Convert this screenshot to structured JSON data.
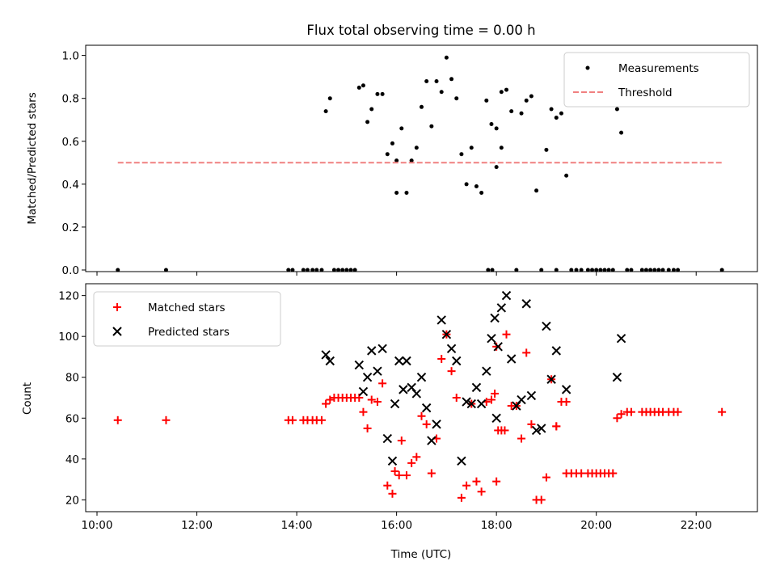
{
  "figure": {
    "title": "Flux total observing time = 0.00 h"
  },
  "chart_data": [
    {
      "type": "scatter",
      "ylabel": "Matched/Predicted stars",
      "xlabel": "",
      "xlim": [
        "10:00",
        "23:00"
      ],
      "ylim": [
        0,
        1.04
      ],
      "yticks": [
        0.0,
        0.2,
        0.4,
        0.6,
        0.8,
        1.0
      ],
      "ytick_labels": [
        "0.0",
        "0.2",
        "0.4",
        "0.6",
        "0.8",
        "1.0"
      ],
      "xticks": [
        "10:00",
        "12:00",
        "14:00",
        "16:00",
        "18:00",
        "20:00",
        "22:00"
      ],
      "show_xtick_labels": false,
      "legend_position": "upper right",
      "series": [
        {
          "name": "Measurements",
          "kind": "points",
          "color": "#000000",
          "points": [
            [
              "10:25",
              0.0
            ],
            [
              "11:23",
              0.0
            ],
            [
              "13:50",
              0.0
            ],
            [
              "13:55",
              0.0
            ],
            [
              "14:08",
              0.0
            ],
            [
              "14:13",
              0.0
            ],
            [
              "14:19",
              0.0
            ],
            [
              "14:24",
              0.0
            ],
            [
              "14:30",
              0.0
            ],
            [
              "14:35",
              0.74
            ],
            [
              "14:40",
              0.8
            ],
            [
              "14:45",
              0.0
            ],
            [
              "14:50",
              0.0
            ],
            [
              "14:55",
              0.0
            ],
            [
              "15:00",
              0.0
            ],
            [
              "15:05",
              0.0
            ],
            [
              "15:10",
              0.0
            ],
            [
              "15:15",
              0.85
            ],
            [
              "15:20",
              0.86
            ],
            [
              "15:25",
              0.69
            ],
            [
              "15:30",
              0.75
            ],
            [
              "15:37",
              0.82
            ],
            [
              "15:43",
              0.82
            ],
            [
              "15:49",
              0.54
            ],
            [
              "15:55",
              0.59
            ],
            [
              "15:60",
              0.51
            ],
            [
              "16:00",
              0.36
            ],
            [
              "16:06",
              0.66
            ],
            [
              "16:12",
              0.36
            ],
            [
              "16:18",
              0.51
            ],
            [
              "16:24",
              0.57
            ],
            [
              "16:30",
              0.76
            ],
            [
              "16:36",
              0.88
            ],
            [
              "16:42",
              0.67
            ],
            [
              "16:48",
              0.88
            ],
            [
              "16:54",
              0.83
            ],
            [
              "17:00",
              0.99
            ],
            [
              "17:06",
              0.89
            ],
            [
              "17:12",
              0.8
            ],
            [
              "17:18",
              0.54
            ],
            [
              "17:24",
              0.4
            ],
            [
              "17:30",
              0.57
            ],
            [
              "17:36",
              0.39
            ],
            [
              "17:42",
              0.36
            ],
            [
              "17:48",
              0.79
            ],
            [
              "17:54",
              0.68
            ],
            [
              "18:00",
              0.66
            ],
            [
              "18:06",
              0.57
            ],
            [
              "17:50",
              0.0
            ],
            [
              "17:55",
              0.0
            ],
            [
              "18:00",
              0.48
            ],
            [
              "18:06",
              0.83
            ],
            [
              "18:12",
              0.84
            ],
            [
              "18:18",
              0.74
            ],
            [
              "18:24",
              0.0
            ],
            [
              "18:30",
              0.73
            ],
            [
              "18:36",
              0.79
            ],
            [
              "18:42",
              0.81
            ],
            [
              "18:48",
              0.37
            ],
            [
              "18:54",
              0.0
            ],
            [
              "19:00",
              0.56
            ],
            [
              "19:06",
              0.75
            ],
            [
              "19:12",
              0.71
            ],
            [
              "19:18",
              0.73
            ],
            [
              "19:12",
              0.0
            ],
            [
              "19:24",
              0.44
            ],
            [
              "19:30",
              0.0
            ],
            [
              "19:36",
              0.0
            ],
            [
              "19:42",
              0.0
            ],
            [
              "19:50",
              0.0
            ],
            [
              "19:55",
              0.0
            ],
            [
              "20:00",
              0.0
            ],
            [
              "20:05",
              0.0
            ],
            [
              "20:10",
              0.0
            ],
            [
              "20:15",
              0.0
            ],
            [
              "20:20",
              0.0
            ],
            [
              "20:25",
              0.75
            ],
            [
              "20:30",
              0.64
            ],
            [
              "20:37",
              0.0
            ],
            [
              "20:42",
              0.0
            ],
            [
              "20:55",
              0.0
            ],
            [
              "21:00",
              0.0
            ],
            [
              "21:05",
              0.0
            ],
            [
              "21:10",
              0.0
            ],
            [
              "21:15",
              0.0
            ],
            [
              "21:20",
              0.0
            ],
            [
              "21:27",
              0.0
            ],
            [
              "21:33",
              0.0
            ],
            [
              "21:38",
              0.0
            ],
            [
              "22:31",
              0.0
            ]
          ]
        },
        {
          "name": "Threshold",
          "kind": "dashed-line",
          "color": "#f08080",
          "points": [
            [
              "10:25",
              0.5
            ],
            [
              "22:31",
              0.5
            ]
          ]
        }
      ]
    },
    {
      "type": "scatter",
      "ylabel": "Count",
      "xlabel": "Time (UTC)",
      "xlim": [
        "10:00",
        "23:00"
      ],
      "ylim": [
        15,
        125
      ],
      "yticks": [
        20,
        40,
        60,
        80,
        100,
        120
      ],
      "ytick_labels": [
        "20",
        "40",
        "60",
        "80",
        "100",
        "120"
      ],
      "xticks": [
        "10:00",
        "12:00",
        "14:00",
        "16:00",
        "18:00",
        "20:00",
        "22:00"
      ],
      "xtick_labels": [
        "10:00",
        "12:00",
        "14:00",
        "16:00",
        "18:00",
        "20:00",
        "22:00"
      ],
      "legend_position": "upper left",
      "series": [
        {
          "name": "Matched stars",
          "marker": "plus",
          "color": "#ff0000",
          "points": [
            [
              "10:25",
              59
            ],
            [
              "11:23",
              59
            ],
            [
              "13:50",
              59
            ],
            [
              "13:55",
              59
            ],
            [
              "14:08",
              59
            ],
            [
              "14:13",
              59
            ],
            [
              "14:19",
              59
            ],
            [
              "14:24",
              59
            ],
            [
              "14:30",
              59
            ],
            [
              "14:35",
              67
            ],
            [
              "14:40",
              69
            ],
            [
              "14:45",
              70
            ],
            [
              "14:50",
              70
            ],
            [
              "14:55",
              70
            ],
            [
              "15:00",
              70
            ],
            [
              "15:05",
              70
            ],
            [
              "15:10",
              70
            ],
            [
              "15:15",
              70
            ],
            [
              "15:20",
              63
            ],
            [
              "15:25",
              55
            ],
            [
              "15:30",
              69
            ],
            [
              "15:37",
              68
            ],
            [
              "15:43",
              77
            ],
            [
              "15:49",
              27
            ],
            [
              "15:55",
              23
            ],
            [
              "15:58",
              34
            ],
            [
              "16:03",
              32
            ],
            [
              "16:06",
              49
            ],
            [
              "16:12",
              32
            ],
            [
              "16:18",
              38
            ],
            [
              "16:24",
              41
            ],
            [
              "16:30",
              61
            ],
            [
              "16:36",
              57
            ],
            [
              "16:42",
              33
            ],
            [
              "16:48",
              50
            ],
            [
              "16:54",
              89
            ],
            [
              "17:00",
              101
            ],
            [
              "17:06",
              83
            ],
            [
              "17:12",
              70
            ],
            [
              "17:18",
              21
            ],
            [
              "17:24",
              27
            ],
            [
              "17:30",
              67
            ],
            [
              "17:36",
              29
            ],
            [
              "17:42",
              24
            ],
            [
              "17:48",
              68
            ],
            [
              "17:54",
              69
            ],
            [
              "17:58",
              72
            ],
            [
              "18:02",
              54
            ],
            [
              "18:06",
              54
            ],
            [
              "18:10",
              54
            ],
            [
              "17:60",
              29
            ],
            [
              "18:00",
              95
            ],
            [
              "18:12",
              101
            ],
            [
              "18:18",
              66
            ],
            [
              "18:24",
              66
            ],
            [
              "18:30",
              50
            ],
            [
              "18:36",
              92
            ],
            [
              "18:42",
              57
            ],
            [
              "18:48",
              20
            ],
            [
              "18:54",
              20
            ],
            [
              "19:00",
              31
            ],
            [
              "19:06",
              79
            ],
            [
              "19:12",
              56
            ],
            [
              "19:18",
              68
            ],
            [
              "19:24",
              68
            ],
            [
              "19:12",
              56
            ],
            [
              "19:24",
              33
            ],
            [
              "19:30",
              33
            ],
            [
              "19:36",
              33
            ],
            [
              "19:42",
              33
            ],
            [
              "19:50",
              33
            ],
            [
              "19:55",
              33
            ],
            [
              "20:00",
              33
            ],
            [
              "20:05",
              33
            ],
            [
              "20:10",
              33
            ],
            [
              "20:15",
              33
            ],
            [
              "20:20",
              33
            ],
            [
              "20:25",
              60
            ],
            [
              "20:30",
              62
            ],
            [
              "20:37",
              63
            ],
            [
              "20:42",
              63
            ],
            [
              "20:55",
              63
            ],
            [
              "21:00",
              63
            ],
            [
              "21:05",
              63
            ],
            [
              "21:10",
              63
            ],
            [
              "21:15",
              63
            ],
            [
              "21:20",
              63
            ],
            [
              "21:27",
              63
            ],
            [
              "21:33",
              63
            ],
            [
              "21:38",
              63
            ],
            [
              "22:31",
              63
            ]
          ]
        },
        {
          "name": "Predicted stars",
          "marker": "x",
          "color": "#000000",
          "points": [
            [
              "14:35",
              91
            ],
            [
              "14:40",
              88
            ],
            [
              "15:15",
              86
            ],
            [
              "15:20",
              73
            ],
            [
              "15:25",
              80
            ],
            [
              "15:30",
              93
            ],
            [
              "15:37",
              83
            ],
            [
              "15:43",
              94
            ],
            [
              "15:49",
              50
            ],
            [
              "15:55",
              39
            ],
            [
              "15:58",
              67
            ],
            [
              "16:03",
              88
            ],
            [
              "16:08",
              74
            ],
            [
              "16:12",
              88
            ],
            [
              "16:18",
              75
            ],
            [
              "16:24",
              72
            ],
            [
              "16:30",
              80
            ],
            [
              "16:36",
              65
            ],
            [
              "16:42",
              49
            ],
            [
              "16:48",
              57
            ],
            [
              "16:54",
              108
            ],
            [
              "17:00",
              101
            ],
            [
              "17:06",
              94
            ],
            [
              "17:12",
              88
            ],
            [
              "17:18",
              39
            ],
            [
              "17:24",
              68
            ],
            [
              "17:30",
              67
            ],
            [
              "17:36",
              75
            ],
            [
              "17:42",
              67
            ],
            [
              "17:48",
              83
            ],
            [
              "17:54",
              99
            ],
            [
              "17:58",
              109
            ],
            [
              "18:02",
              95
            ],
            [
              "18:00",
              60
            ],
            [
              "18:06",
              114
            ],
            [
              "18:12",
              120
            ],
            [
              "18:18",
              89
            ],
            [
              "18:24",
              66
            ],
            [
              "18:30",
              69
            ],
            [
              "18:36",
              116
            ],
            [
              "18:42",
              71
            ],
            [
              "18:48",
              54
            ],
            [
              "18:54",
              55
            ],
            [
              "19:00",
              105
            ],
            [
              "19:06",
              79
            ],
            [
              "19:12",
              93
            ],
            [
              "19:24",
              74
            ],
            [
              "20:25",
              80
            ],
            [
              "20:30",
              99
            ]
          ]
        }
      ]
    }
  ]
}
